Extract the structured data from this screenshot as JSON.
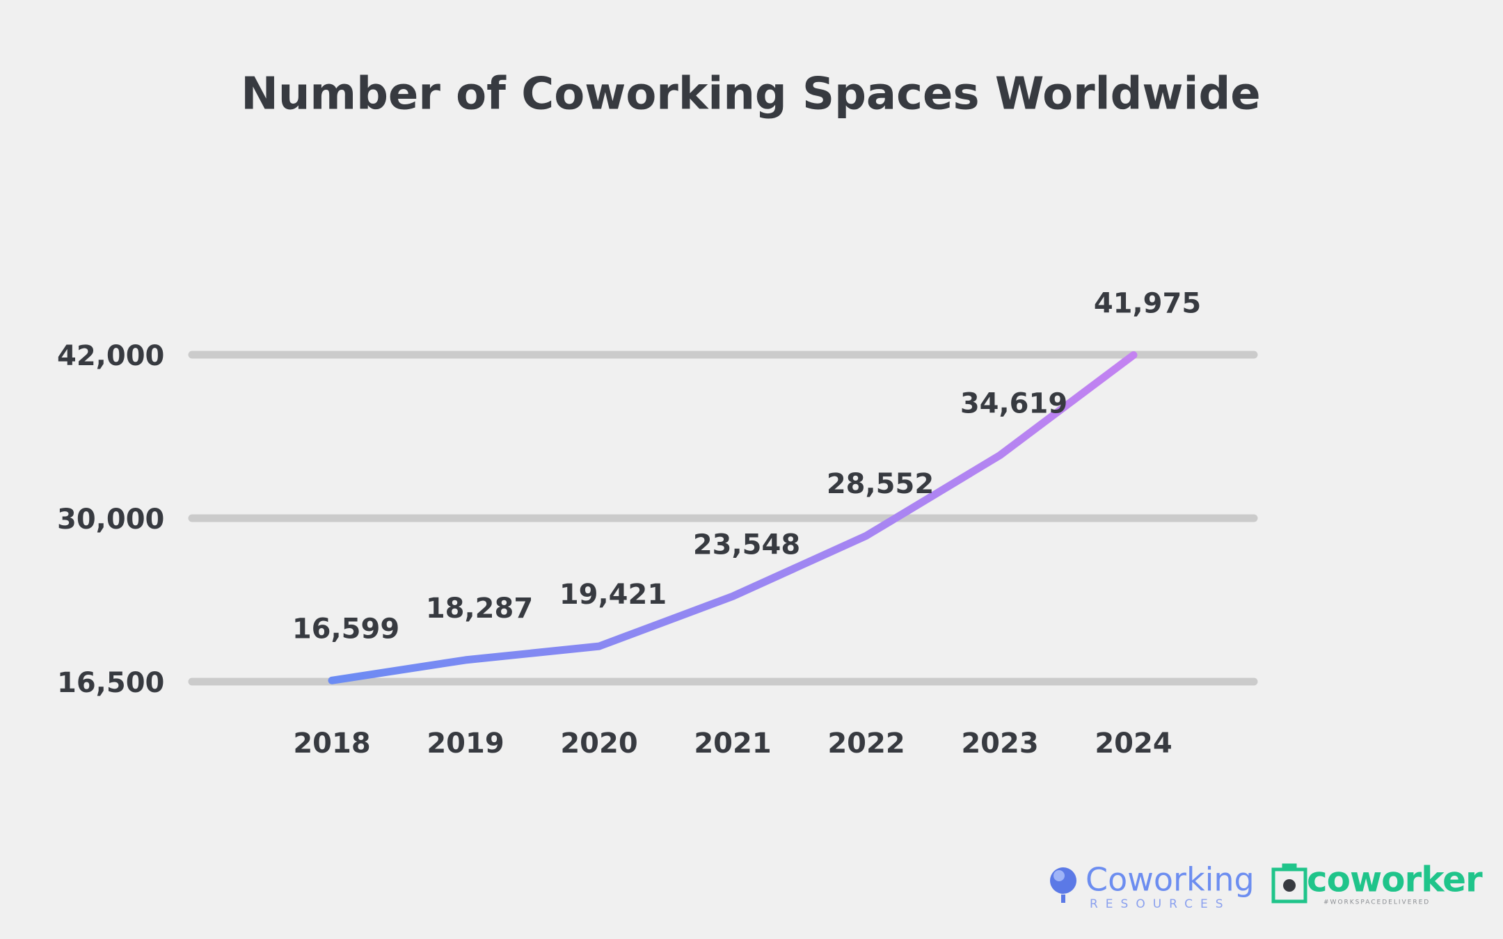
{
  "chart_data": {
    "type": "line",
    "title": "Number of Coworking Spaces Worldwide",
    "categories": [
      "2018",
      "2019",
      "2020",
      "2021",
      "2022",
      "2023",
      "2024"
    ],
    "values": [
      16599,
      18287,
      19421,
      23548,
      28552,
      34619,
      41975
    ],
    "value_labels": [
      "16,599",
      "18,287",
      "19,421",
      "23,548",
      "28,552",
      "34,619",
      "41,975"
    ],
    "color": [
      "#6b8bf3",
      "#c382f1"
    ],
    "ylim": [
      16500,
      42000
    ],
    "yticks": [
      {
        "value": 16500,
        "label": "16,500"
      },
      {
        "value": 30000,
        "label": "30,000"
      },
      {
        "value": 42000,
        "label": "42,000"
      }
    ],
    "grid": true
  },
  "footer": {
    "logo1": "Coworking",
    "logo1_sub": "RESOURCES",
    "logo2": "coworker",
    "logo2_sub": "#WORKSPACEDELIVERED"
  }
}
